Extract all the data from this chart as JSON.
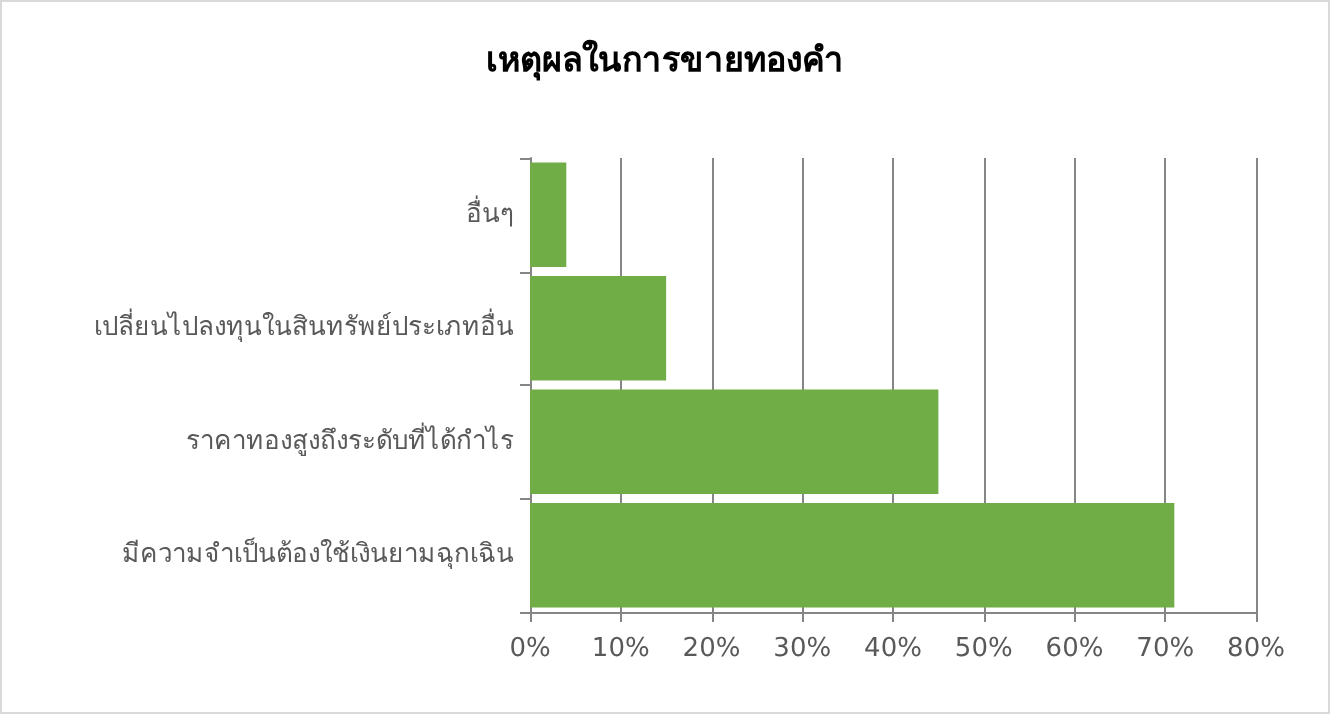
{
  "chart_data": {
    "type": "bar",
    "title": "เหตุผลในการขายทองคำ",
    "orientation": "horizontal",
    "categories": [
      "อื่นๆ",
      "เปลี่ยนไปลงทุนในสินทรัพย์ประเภทอื่น",
      "ราคาทองสูงถึงระดับที่ได้กำไร",
      "มีความจำเป็นต้องใช้เงินยามฉุกเฉิน"
    ],
    "values": [
      4,
      15,
      45,
      71
    ],
    "color": "#70ad47",
    "xlim": [
      0,
      80
    ],
    "xticks": [
      {
        "value": 0,
        "label": "0%"
      },
      {
        "value": 10,
        "label": "10%"
      },
      {
        "value": 20,
        "label": "20%"
      },
      {
        "value": 30,
        "label": "30%"
      },
      {
        "value": 40,
        "label": "40%"
      },
      {
        "value": 50,
        "label": "50%"
      },
      {
        "value": 60,
        "label": "60%"
      },
      {
        "value": 70,
        "label": "70%"
      },
      {
        "value": 80,
        "label": "80%"
      }
    ],
    "grid": "x"
  }
}
